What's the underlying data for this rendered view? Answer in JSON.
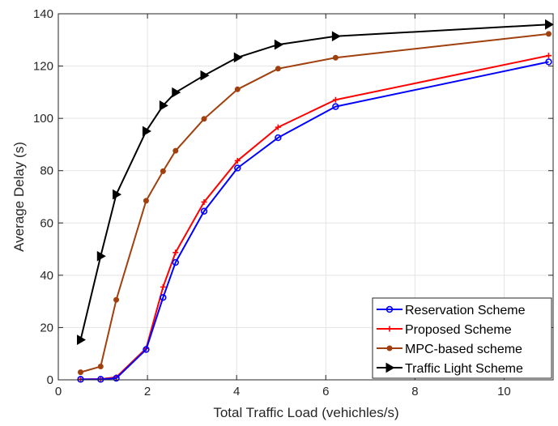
{
  "chart_data": {
    "type": "line",
    "title": "",
    "xlabel": "Total Traffic Load (vehichles/s)",
    "ylabel": "Average Delay (s)",
    "xlim": [
      0,
      11.1
    ],
    "ylim": [
      0,
      140
    ],
    "xticks": [
      0,
      2,
      4,
      6,
      8,
      10
    ],
    "yticks": [
      0,
      20,
      40,
      60,
      80,
      100,
      120,
      140
    ],
    "x_tick_labels": [
      "0",
      "2",
      "4",
      "6",
      "8",
      "10"
    ],
    "y_tick_labels": [
      "0",
      "20",
      "40",
      "60",
      "80",
      "100",
      "120",
      "140"
    ],
    "grid": true,
    "legend_position": "bottom-right",
    "series": [
      {
        "name": "Reservation Scheme",
        "color": "#0000ff",
        "marker": "circle",
        "x": [
          0.5,
          0.95,
          1.3,
          1.97,
          2.35,
          2.63,
          3.27,
          4.02,
          4.93,
          6.22,
          11.0
        ],
        "y": [
          0.2,
          0.2,
          0.6,
          11.6,
          31.5,
          44.9,
          64.5,
          81.0,
          92.6,
          104.5,
          121.6
        ]
      },
      {
        "name": "Proposed Scheme",
        "color": "#ff0000",
        "marker": "plus",
        "x": [
          0.5,
          0.95,
          1.3,
          1.97,
          2.35,
          2.63,
          3.27,
          4.02,
          4.93,
          6.22,
          11.0
        ],
        "y": [
          0.2,
          0.3,
          1.0,
          12.0,
          35.5,
          48.7,
          68.0,
          83.8,
          96.6,
          107.1,
          124.0
        ]
      },
      {
        "name": "MPC-based scheme",
        "color": "#a0400e",
        "marker": "dot",
        "x": [
          0.5,
          0.95,
          1.3,
          1.97,
          2.35,
          2.63,
          3.27,
          4.02,
          4.93,
          6.22,
          11.0
        ],
        "y": [
          2.9,
          5.1,
          30.6,
          68.5,
          79.8,
          87.6,
          99.8,
          111.1,
          119.0,
          123.2,
          132.3
        ]
      },
      {
        "name": "Traffic Light Scheme",
        "color": "#000000",
        "marker": "triangle-right",
        "x": [
          0.5,
          0.95,
          1.3,
          1.97,
          2.35,
          2.63,
          3.27,
          4.02,
          4.93,
          6.22,
          11.0
        ],
        "y": [
          15.3,
          47.3,
          70.9,
          95.1,
          104.9,
          109.9,
          116.4,
          123.3,
          128.2,
          131.4,
          135.9
        ]
      }
    ]
  }
}
